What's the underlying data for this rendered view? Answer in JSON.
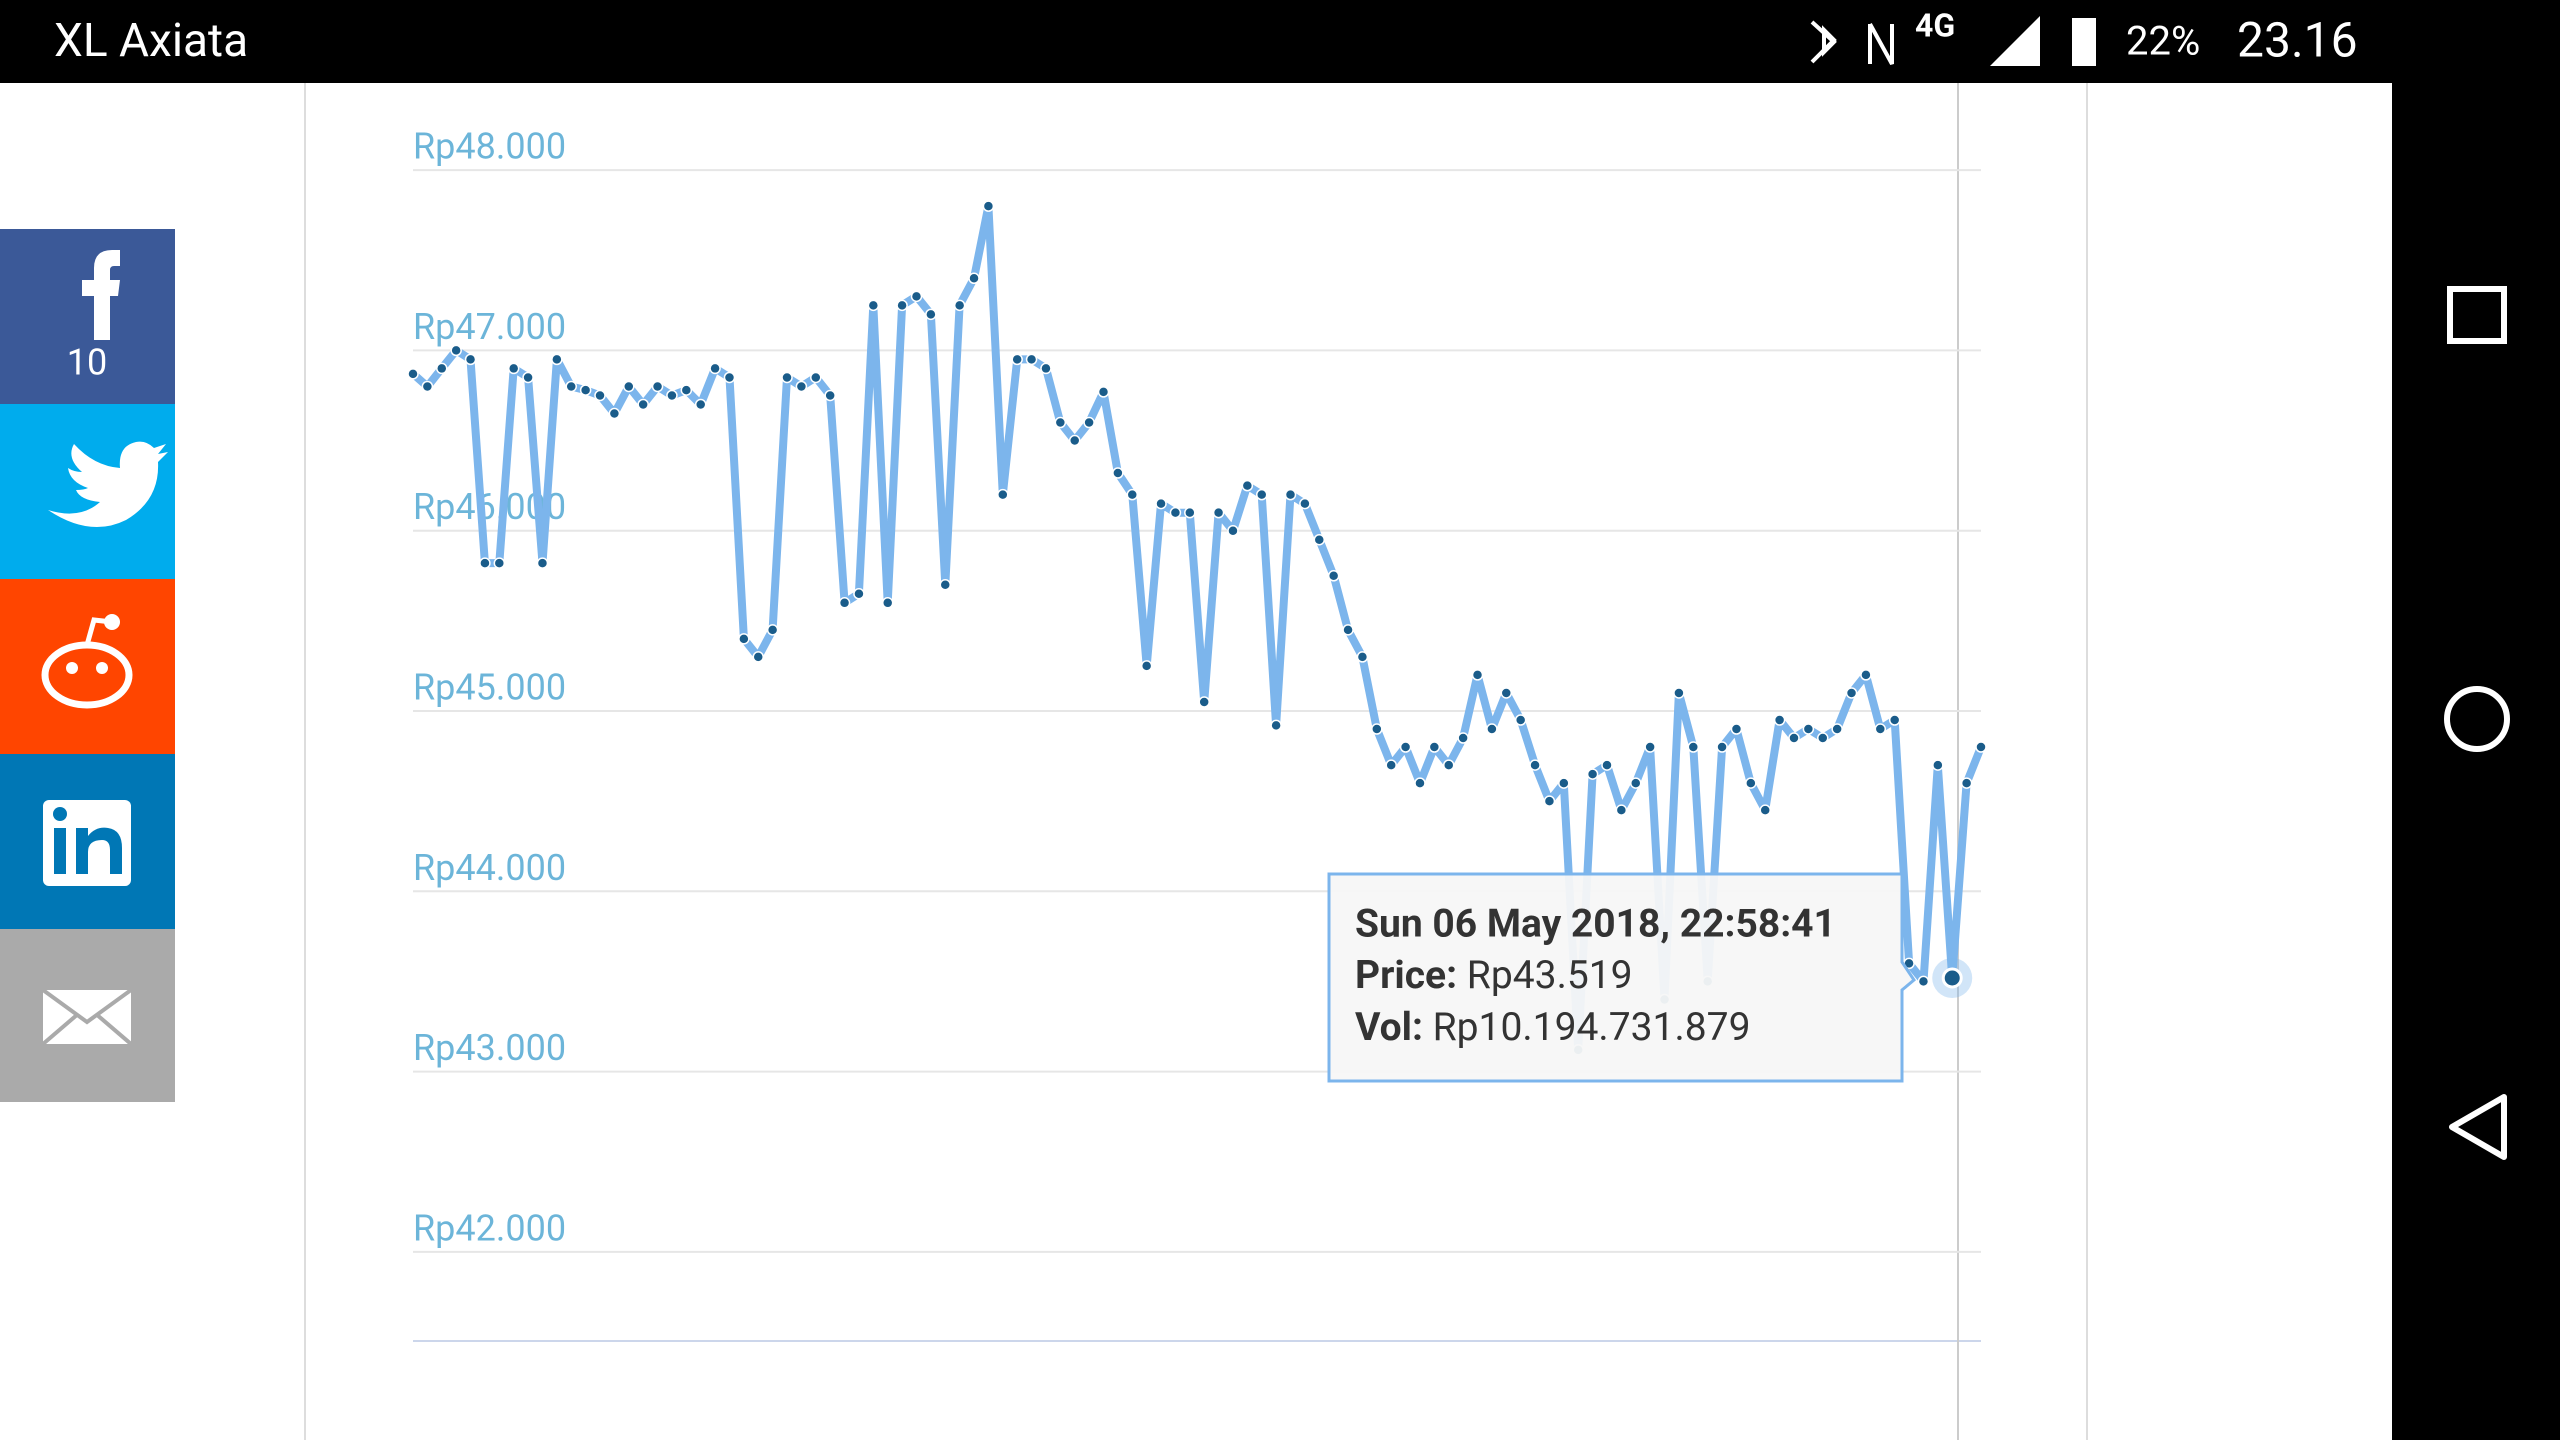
{
  "status_bar": {
    "carrier": "XL Axiata",
    "network": "4G",
    "battery": "22%",
    "time": "23.16"
  },
  "share": {
    "facebook_count": "10"
  },
  "chart_data": {
    "type": "line",
    "color": "#7cb5ec",
    "marker_color": "#1a5c8a",
    "values": [
      46870,
      46800,
      46900,
      47000,
      46950,
      45820,
      45820,
      46900,
      46850,
      45820,
      46950,
      46800,
      46780,
      46750,
      46650,
      46800,
      46700,
      46800,
      46750,
      46780,
      46700,
      46900,
      46850,
      45400,
      45300,
      45450,
      46850,
      46800,
      46850,
      46750,
      45600,
      45650,
      47250,
      45600,
      47250,
      47300,
      47200,
      45700,
      47250,
      47400,
      47800,
      46200,
      46950,
      46950,
      46900,
      46600,
      46500,
      46600,
      46770,
      46320,
      46200,
      45250,
      46150,
      46100,
      46100,
      45050,
      46100,
      46000,
      46250,
      46200,
      44920,
      46200,
      46150,
      45950,
      45750,
      45450,
      45300,
      44900,
      44700,
      44800,
      44600,
      44800,
      44700,
      44850,
      45200,
      44900,
      45100,
      44950,
      44700,
      44500,
      44600,
      43120,
      44650,
      44700,
      44450,
      44600,
      44800,
      43400,
      45100,
      44800,
      43500,
      44800,
      44900,
      44600,
      44450,
      44950,
      44850,
      44900,
      44850,
      44900,
      45100,
      45200,
      44900,
      44950,
      43600,
      43500,
      44700,
      43519,
      44600,
      44800
    ],
    "ylim": [
      41500,
      48400
    ],
    "yticks": [
      {
        "value": 42000,
        "label": "Rp42.000"
      },
      {
        "value": 43000,
        "label": "Rp43.000"
      },
      {
        "value": 44000,
        "label": "Rp44.000"
      },
      {
        "value": 45000,
        "label": "Rp45.000"
      },
      {
        "value": 46000,
        "label": "Rp46.000"
      },
      {
        "value": 47000,
        "label": "Rp47.000"
      },
      {
        "value": 48000,
        "label": "Rp48.000"
      }
    ],
    "grid": true
  },
  "tooltip": {
    "date": "Sun 06 May 2018, 22:58:41",
    "price_label": "Price:",
    "price": "Rp43.519",
    "vol_label": "Vol:",
    "vol": "Rp10.194.731.879"
  }
}
